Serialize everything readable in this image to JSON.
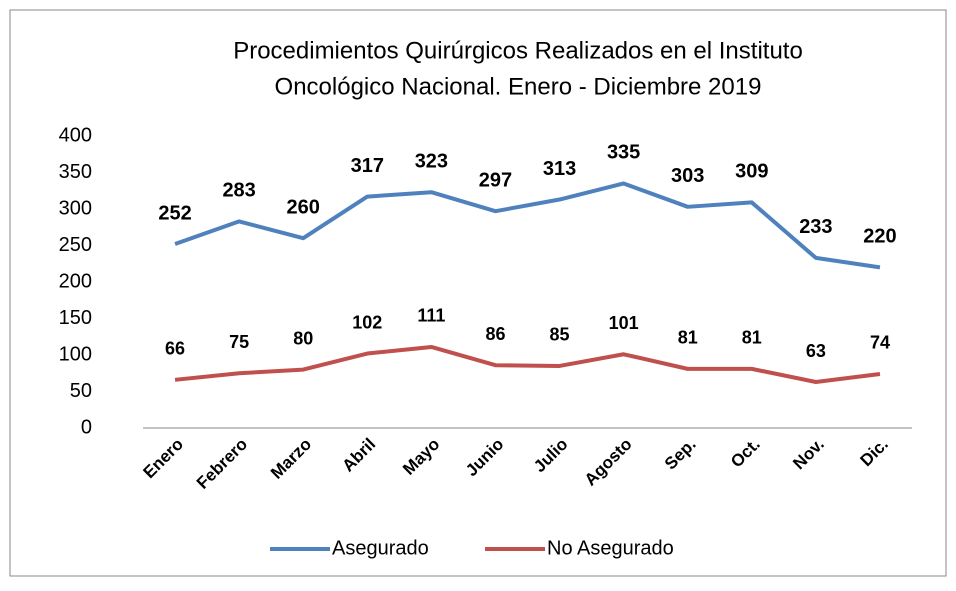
{
  "chart_data": {
    "type": "line",
    "title": [
      "Procedimientos Quirúrgicos Realizados en el Instituto",
      "Oncológico Nacional. Enero - Diciembre  2019"
    ],
    "categories": [
      "Enero",
      "Febrero",
      "Marzo",
      "Abril",
      "Mayo",
      "Junio",
      "Julio",
      "Agosto",
      "Sep.",
      "Oct.",
      "Nov.",
      "Dic."
    ],
    "series": [
      {
        "name": "Asegurado",
        "color": "#4f81bd",
        "values": [
          252,
          283,
          260,
          317,
          323,
          297,
          313,
          335,
          303,
          309,
          233,
          220
        ]
      },
      {
        "name": "No Asegurado",
        "color": "#c0504d",
        "values": [
          66,
          75,
          80,
          102,
          111,
          86,
          85,
          101,
          81,
          81,
          63,
          74
        ]
      }
    ],
    "ylim": [
      0,
      400
    ],
    "yticks": [
      0,
      50,
      100,
      150,
      200,
      250,
      300,
      350,
      400
    ],
    "grid": false,
    "legend": "bottom"
  }
}
